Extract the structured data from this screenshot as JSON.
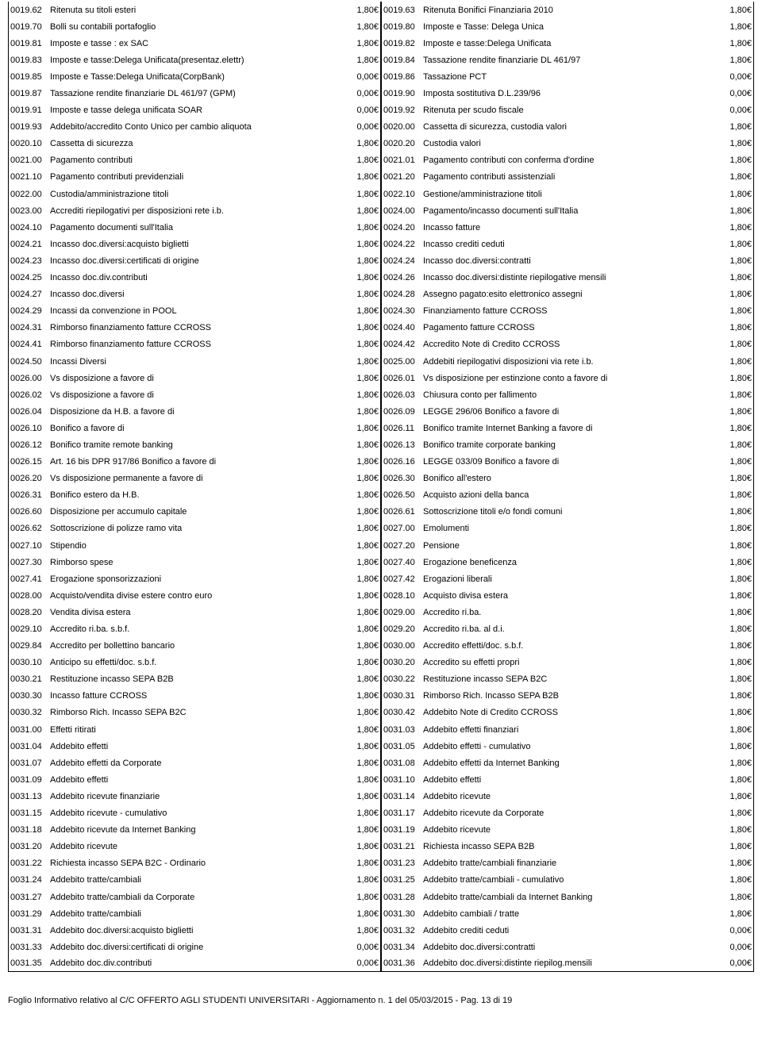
{
  "footer": "Foglio Informativo relativo al  C/C OFFERTO AGLI STUDENTI UNIVERSITARI - Aggiornamento n. 1 del 05/03/2015 - Pag. 13 di 19",
  "left": [
    {
      "c": "0019.62",
      "d": "Ritenuta su titoli esteri",
      "p": "1,80€"
    },
    {
      "c": "0019.70",
      "d": "Bolli su contabili portafoglio",
      "p": "1,80€"
    },
    {
      "c": "0019.81",
      "d": "Imposte e tasse : ex SAC",
      "p": "1,80€"
    },
    {
      "c": "0019.83",
      "d": "Imposte e tasse:Delega Unificata(presentaz.elettr)",
      "p": "1,80€"
    },
    {
      "c": "0019.85",
      "d": "Imposte e Tasse:Delega Unificata(CorpBank)",
      "p": "0,00€"
    },
    {
      "c": "0019.87",
      "d": "Tassazione rendite finanziarie DL 461/97 (GPM)",
      "p": "0,00€"
    },
    {
      "c": "0019.91",
      "d": "Imposte e tasse delega unificata SOAR",
      "p": "0,00€"
    },
    {
      "c": "0019.93",
      "d": "Addebito/accredito Conto Unico per cambio aliquota",
      "p": "0,00€"
    },
    {
      "c": "0020.10",
      "d": "Cassetta di sicurezza",
      "p": "1,80€"
    },
    {
      "c": "0021.00",
      "d": "Pagamento contributi",
      "p": "1,80€"
    },
    {
      "c": "0021.10",
      "d": "Pagamento contributi previdenziali",
      "p": "1,80€"
    },
    {
      "c": "0022.00",
      "d": "Custodia/amministrazione titoli",
      "p": "1,80€"
    },
    {
      "c": "0023.00",
      "d": "Accrediti riepilogativi per disposizioni rete i.b.",
      "p": "1,80€"
    },
    {
      "c": "0024.10",
      "d": "Pagamento documenti sull'Italia",
      "p": "1,80€"
    },
    {
      "c": "0024.21",
      "d": "Incasso doc.diversi:acquisto biglietti",
      "p": "1,80€"
    },
    {
      "c": "0024.23",
      "d": "Incasso doc.diversi:certificati di origine",
      "p": "1,80€"
    },
    {
      "c": "0024.25",
      "d": "Incasso doc.div.contributi",
      "p": "1,80€"
    },
    {
      "c": "0024.27",
      "d": "Incasso doc.diversi",
      "p": "1,80€"
    },
    {
      "c": "0024.29",
      "d": "Incassi da convenzione in POOL",
      "p": "1,80€"
    },
    {
      "c": "0024.31",
      "d": "Rimborso finanziamento fatture CCROSS",
      "p": "1,80€"
    },
    {
      "c": "0024.41",
      "d": "Rimborso finanziamento fatture CCROSS",
      "p": "1,80€"
    },
    {
      "c": "0024.50",
      "d": "Incassi Diversi",
      "p": "1,80€"
    },
    {
      "c": "0026.00",
      "d": "Vs disposizione a favore di",
      "p": "1,80€"
    },
    {
      "c": "0026.02",
      "d": "Vs disposizione a favore di",
      "p": "1,80€"
    },
    {
      "c": "0026.04",
      "d": "Disposizione da H.B. a favore di",
      "p": "1,80€"
    },
    {
      "c": "0026.10",
      "d": "Bonifico a favore di",
      "p": "1,80€"
    },
    {
      "c": "0026.12",
      "d": "Bonifico tramite remote banking",
      "p": "1,80€"
    },
    {
      "c": "0026.15",
      "d": "Art. 16 bis DPR 917/86 Bonifico a favore di",
      "p": "1,80€"
    },
    {
      "c": "0026.20",
      "d": "Vs disposizione permanente a favore di",
      "p": "1,80€"
    },
    {
      "c": "0026.31",
      "d": "Bonifico estero da H.B.",
      "p": "1,80€"
    },
    {
      "c": "0026.60",
      "d": "Disposizione per accumulo capitale",
      "p": "1,80€"
    },
    {
      "c": "0026.62",
      "d": "Sottoscrizione di polizze ramo vita",
      "p": "1,80€"
    },
    {
      "c": "0027.10",
      "d": "Stipendio",
      "p": "1,80€"
    },
    {
      "c": "0027.30",
      "d": "Rimborso spese",
      "p": "1,80€"
    },
    {
      "c": "0027.41",
      "d": "Erogazione sponsorizzazioni",
      "p": "1,80€"
    },
    {
      "c": "0028.00",
      "d": "Acquisto/vendita divise estere contro euro",
      "p": "1,80€"
    },
    {
      "c": "0028.20",
      "d": "Vendita divisa estera",
      "p": "1,80€"
    },
    {
      "c": "0029.10",
      "d": "Accredito ri.ba. s.b.f.",
      "p": "1,80€"
    },
    {
      "c": "0029.84",
      "d": "Accredito per bollettino bancario",
      "p": "1,80€"
    },
    {
      "c": "0030.10",
      "d": "Anticipo su effetti/doc. s.b.f.",
      "p": "1,80€"
    },
    {
      "c": "0030.21",
      "d": "Restituzione incasso SEPA B2B",
      "p": "1,80€"
    },
    {
      "c": "0030.30",
      "d": "Incasso fatture CCROSS",
      "p": "1,80€"
    },
    {
      "c": "0030.32",
      "d": "Rimborso Rich. Incasso SEPA B2C",
      "p": "1,80€"
    },
    {
      "c": "0031.00",
      "d": "Effetti ritirati",
      "p": "1,80€"
    },
    {
      "c": "0031.04",
      "d": "Addebito effetti",
      "p": "1,80€"
    },
    {
      "c": "0031.07",
      "d": "Addebito effetti da Corporate",
      "p": "1,80€"
    },
    {
      "c": "0031.09",
      "d": "Addebito effetti",
      "p": "1,80€"
    },
    {
      "c": "0031.13",
      "d": "Addebito ricevute finanziarie",
      "p": "1,80€"
    },
    {
      "c": "0031.15",
      "d": "Addebito ricevute - cumulativo",
      "p": "1,80€"
    },
    {
      "c": "0031.18",
      "d": "Addebito ricevute da Internet  Banking",
      "p": "1,80€"
    },
    {
      "c": "0031.20",
      "d": "Addebito ricevute",
      "p": "1,80€"
    },
    {
      "c": "0031.22",
      "d": "Richiesta incasso SEPA B2C - Ordinario",
      "p": "1,80€"
    },
    {
      "c": "0031.24",
      "d": "Addebito tratte/cambiali",
      "p": "1,80€"
    },
    {
      "c": "0031.27",
      "d": "Addebito tratte/cambiali da Corporate",
      "p": "1,80€"
    },
    {
      "c": "0031.29",
      "d": "Addebito tratte/cambiali",
      "p": "1,80€"
    },
    {
      "c": "0031.31",
      "d": "Addebito doc.diversi:acquisto biglietti",
      "p": "1,80€"
    },
    {
      "c": "0031.33",
      "d": "Addebito doc.diversi:certificati di origine",
      "p": "0,00€"
    },
    {
      "c": "0031.35",
      "d": "Addebito doc.div.contributi",
      "p": "0,00€"
    }
  ],
  "right": [
    {
      "c": "0019.63",
      "d": "Ritenuta Bonifici Finanziaria 2010",
      "p": "1,80€"
    },
    {
      "c": "0019.80",
      "d": "Imposte e Tasse: Delega Unica",
      "p": "1,80€"
    },
    {
      "c": "0019.82",
      "d": "Imposte e tasse:Delega Unificata",
      "p": "1,80€"
    },
    {
      "c": "0019.84",
      "d": "Tassazione rendite finanziarie DL 461/97",
      "p": "1,80€"
    },
    {
      "c": "0019.86",
      "d": "Tassazione PCT",
      "p": "0,00€"
    },
    {
      "c": "0019.90",
      "d": "Imposta sostitutiva D.L.239/96",
      "p": "0,00€"
    },
    {
      "c": "0019.92",
      "d": "Ritenuta per scudo fiscale",
      "p": "0,00€"
    },
    {
      "c": "0020.00",
      "d": "Cassetta di sicurezza, custodia valori",
      "p": "1,80€"
    },
    {
      "c": "0020.20",
      "d": "Custodia valori",
      "p": "1,80€"
    },
    {
      "c": "0021.01",
      "d": "Pagamento contributi con conferma d'ordine",
      "p": "1,80€"
    },
    {
      "c": "0021.20",
      "d": "Pagamento contributi assistenziali",
      "p": "1,80€"
    },
    {
      "c": "0022.10",
      "d": "Gestione/amministrazione titoli",
      "p": "1,80€"
    },
    {
      "c": "0024.00",
      "d": "Pagamento/incasso documenti sull'Italia",
      "p": "1,80€"
    },
    {
      "c": "0024.20",
      "d": "Incasso fatture",
      "p": "1,80€"
    },
    {
      "c": "0024.22",
      "d": "Incasso crediti ceduti",
      "p": "1,80€"
    },
    {
      "c": "0024.24",
      "d": "Incasso doc.diversi:contratti",
      "p": "1,80€"
    },
    {
      "c": "0024.26",
      "d": "Incasso doc.diversi:distinte riepilogative mensili",
      "p": "1,80€"
    },
    {
      "c": "0024.28",
      "d": "Assegno pagato:esito elettronico assegni",
      "p": "1,80€"
    },
    {
      "c": "0024.30",
      "d": "Finanziamento fatture CCROSS",
      "p": "1,80€"
    },
    {
      "c": "0024.40",
      "d": "Pagamento fatture CCROSS",
      "p": "1,80€"
    },
    {
      "c": "0024.42",
      "d": "Accredito Note di Credito CCROSS",
      "p": "1,80€"
    },
    {
      "c": "0025.00",
      "d": "Addebiti riepilogativi disposizioni via rete i.b.",
      "p": "1,80€"
    },
    {
      "c": "0026.01",
      "d": "Vs disposizione per estinzione conto a favore di",
      "p": "1,80€"
    },
    {
      "c": "0026.03",
      "d": "Chiusura conto per fallimento",
      "p": "1,80€"
    },
    {
      "c": "0026.09",
      "d": "LEGGE 296/06 Bonifico a favore di",
      "p": "1,80€"
    },
    {
      "c": "0026.11",
      "d": "Bonifico tramite Internet Banking a favore di",
      "p": "1,80€"
    },
    {
      "c": "0026.13",
      "d": "Bonifico tramite corporate banking",
      "p": "1,80€"
    },
    {
      "c": "0026.16",
      "d": "LEGGE 033/09 Bonifico a favore di",
      "p": "1,80€"
    },
    {
      "c": "0026.30",
      "d": "Bonifico all'estero",
      "p": "1,80€"
    },
    {
      "c": "0026.50",
      "d": "Acquisto azioni della banca",
      "p": "1,80€"
    },
    {
      "c": "0026.61",
      "d": "Sottoscrizione titoli e/o fondi comuni",
      "p": "1,80€"
    },
    {
      "c": "0027.00",
      "d": "Emolumenti",
      "p": "1,80€"
    },
    {
      "c": "0027.20",
      "d": "Pensione",
      "p": "1,80€"
    },
    {
      "c": "0027.40",
      "d": "Erogazione beneficenza",
      "p": "1,80€"
    },
    {
      "c": "0027.42",
      "d": "Erogazioni liberali",
      "p": "1,80€"
    },
    {
      "c": "0028.10",
      "d": "Acquisto divisa estera",
      "p": "1,80€"
    },
    {
      "c": "0029.00",
      "d": "Accredito ri.ba.",
      "p": "1,80€"
    },
    {
      "c": "0029.20",
      "d": "Accredito ri.ba. al d.i.",
      "p": "1,80€"
    },
    {
      "c": "0030.00",
      "d": "Accredito effetti/doc. s.b.f.",
      "p": "1,80€"
    },
    {
      "c": "0030.20",
      "d": "Accredito su effetti propri",
      "p": "1,80€"
    },
    {
      "c": "0030.22",
      "d": "Restituzione incasso SEPA B2C",
      "p": "1,80€"
    },
    {
      "c": "0030.31",
      "d": "Rimborso Rich. Incasso SEPA B2B",
      "p": "1,80€"
    },
    {
      "c": "0030.42",
      "d": "Addebito Note di Credito CCROSS",
      "p": "1,80€"
    },
    {
      "c": "0031.03",
      "d": "Addebito effetti finanziari",
      "p": "1,80€"
    },
    {
      "c": "0031.05",
      "d": "Addebito effetti - cumulativo",
      "p": "1,80€"
    },
    {
      "c": "0031.08",
      "d": "Addebito effetti da Internet Banking",
      "p": "1,80€"
    },
    {
      "c": "0031.10",
      "d": "Addebito effetti",
      "p": "1,80€"
    },
    {
      "c": "0031.14",
      "d": "Addebito ricevute",
      "p": "1,80€"
    },
    {
      "c": "0031.17",
      "d": "Addebito ricevute da Corporate",
      "p": "1,80€"
    },
    {
      "c": "0031.19",
      "d": "Addebito ricevute",
      "p": "1,80€"
    },
    {
      "c": "0031.21",
      "d": "Richiesta incasso SEPA B2B",
      "p": "1,80€"
    },
    {
      "c": "0031.23",
      "d": "Addebito tratte/cambiali finanziarie",
      "p": "1,80€"
    },
    {
      "c": "0031.25",
      "d": "Addebito tratte/cambiali - cumulativo",
      "p": "1,80€"
    },
    {
      "c": "0031.28",
      "d": "Addebito tratte/cambiali da Internet Banking",
      "p": "1,80€"
    },
    {
      "c": "0031.30",
      "d": "Addebito cambiali / tratte",
      "p": "1,80€"
    },
    {
      "c": "0031.32",
      "d": "Addebito crediti ceduti",
      "p": "0,00€"
    },
    {
      "c": "0031.34",
      "d": "Addebito doc.diversi:contratti",
      "p": "0,00€"
    },
    {
      "c": "0031.36",
      "d": "Addebito doc.diversi:distinte riepilog.mensili",
      "p": "0,00€"
    }
  ]
}
